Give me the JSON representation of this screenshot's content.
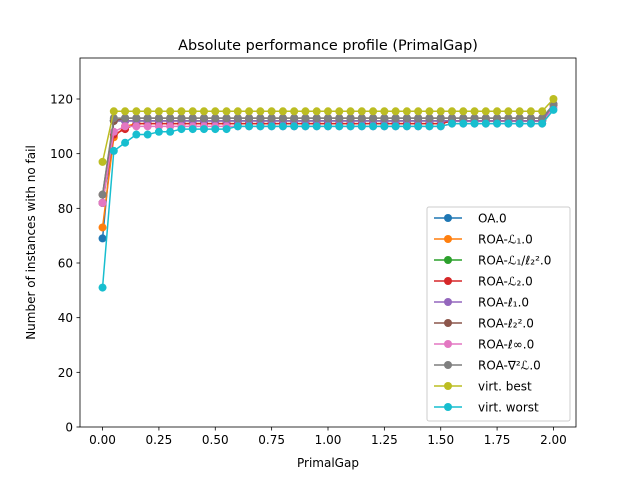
{
  "chart_data": {
    "type": "line",
    "title": "Absolute performance profile (PrimalGap)",
    "xlabel": "PrimalGap",
    "ylabel": "Number of instances with no fail",
    "xlim": [
      -0.1,
      2.1
    ],
    "ylim": [
      0,
      135
    ],
    "xticks": [
      0.0,
      0.25,
      0.5,
      0.75,
      1.0,
      1.25,
      1.5,
      1.75,
      2.0
    ],
    "xtick_labels": [
      "0.00",
      "0.25",
      "0.50",
      "0.75",
      "1.00",
      "1.25",
      "1.50",
      "1.75",
      "2.00"
    ],
    "yticks": [
      0,
      20,
      40,
      60,
      80,
      100,
      120
    ],
    "ytick_labels": [
      "0",
      "20",
      "40",
      "60",
      "80",
      "100",
      "120"
    ],
    "legend_position": "lower-right",
    "x": [
      0.0,
      0.05,
      0.1,
      0.15,
      0.2,
      0.25,
      0.3,
      0.35,
      0.4,
      0.45,
      0.5,
      0.55,
      0.6,
      0.65,
      0.7,
      0.75,
      0.8,
      0.85,
      0.9,
      0.95,
      1.0,
      1.05,
      1.1,
      1.15,
      1.2,
      1.25,
      1.3,
      1.35,
      1.4,
      1.45,
      1.5,
      1.55,
      1.6,
      1.65,
      1.7,
      1.75,
      1.8,
      1.85,
      1.9,
      1.95,
      2.0
    ],
    "series": [
      {
        "name": "OA.0",
        "color": "#1f77b4",
        "values": [
          69,
          112,
          112,
          112,
          112,
          112,
          112,
          112,
          112,
          112,
          112,
          112,
          112,
          112,
          112,
          112,
          112,
          112,
          112,
          112,
          112,
          112,
          112,
          112,
          112,
          112,
          112,
          112,
          112,
          112,
          112,
          112,
          112,
          112,
          112,
          112,
          112,
          112,
          112,
          112,
          118
        ]
      },
      {
        "name": "ROA-ℒ₁.0",
        "color": "#ff7f0e",
        "values": [
          73,
          106,
          110,
          111,
          111,
          111,
          111,
          111,
          111,
          111,
          111,
          111,
          111,
          111,
          111,
          111,
          111,
          111,
          111,
          111,
          111,
          111,
          111,
          111,
          111,
          111,
          111,
          111,
          111,
          111,
          111,
          112,
          112,
          112,
          112,
          112,
          112,
          112,
          112,
          112,
          118
        ]
      },
      {
        "name": "ROA-ℒ₁/ℓ₂².0",
        "color": "#2ca02c",
        "values": [
          82,
          112,
          112,
          112,
          112,
          112,
          112,
          112,
          112,
          112,
          112,
          112,
          112,
          112,
          112,
          112,
          112,
          112,
          112,
          112,
          112,
          112,
          112,
          112,
          112,
          112,
          112,
          112,
          112,
          112,
          112,
          112,
          112,
          112,
          112,
          112,
          112,
          112,
          112,
          112,
          118
        ]
      },
      {
        "name": "ROA-ℒ₂.0",
        "color": "#d62728",
        "values": [
          82,
          107,
          109,
          111,
          111,
          111,
          111,
          111,
          111,
          111,
          111,
          111,
          111,
          111,
          111,
          111,
          111,
          111,
          111,
          111,
          111,
          111,
          111,
          111,
          111,
          111,
          111,
          111,
          111,
          111,
          111,
          112,
          112,
          112,
          112,
          112,
          112,
          112,
          112,
          112,
          118
        ]
      },
      {
        "name": "ROA-ℓ₁.0",
        "color": "#9467bd",
        "values": [
          82,
          112,
          112,
          112,
          112,
          112,
          112,
          112,
          112,
          112,
          112,
          112,
          112,
          112,
          112,
          112,
          112,
          112,
          112,
          112,
          112,
          112,
          112,
          112,
          112,
          112,
          112,
          112,
          112,
          112,
          112,
          112,
          112,
          112,
          112,
          112,
          112,
          112,
          112,
          112,
          118
        ]
      },
      {
        "name": "ROA-ℓ₂².0",
        "color": "#8c564b",
        "values": [
          85,
          112,
          113,
          113,
          113,
          113,
          113,
          113,
          113,
          113,
          113,
          113,
          113,
          113,
          113,
          113,
          113,
          113,
          113,
          113,
          113,
          113,
          113,
          113,
          113,
          113,
          113,
          113,
          113,
          113,
          113,
          113,
          113,
          113,
          113,
          113,
          113,
          113,
          113,
          113,
          118
        ]
      },
      {
        "name": "ROA-ℓ∞.0",
        "color": "#e377c2",
        "values": [
          82,
          108,
          110,
          110,
          110,
          110,
          110,
          110,
          110,
          110,
          110,
          110,
          110,
          110,
          110,
          110,
          110,
          110,
          110,
          110,
          110,
          110,
          110,
          110,
          110,
          110,
          110,
          110,
          110,
          110,
          110,
          111,
          111,
          111,
          111,
          111,
          111,
          111,
          111,
          111,
          117
        ]
      },
      {
        "name": "ROA-∇²ℒ.0",
        "color": "#7f7f7f",
        "values": [
          85,
          113,
          113,
          113,
          113,
          113,
          113,
          113,
          113,
          113,
          113,
          113,
          113,
          113,
          113,
          113,
          113,
          113,
          113,
          113,
          113,
          113,
          113,
          113,
          113,
          113,
          113,
          113,
          113,
          113,
          113,
          113,
          113,
          113,
          113,
          113,
          113,
          113,
          113,
          113,
          118
        ]
      },
      {
        "name": "virt. best",
        "color": "#bcbd22",
        "values": [
          97,
          115.5,
          115.5,
          115.5,
          115.5,
          115.5,
          115.5,
          115.5,
          115.5,
          115.5,
          115.5,
          115.5,
          115.5,
          115.5,
          115.5,
          115.5,
          115.5,
          115.5,
          115.5,
          115.5,
          115.5,
          115.5,
          115.5,
          115.5,
          115.5,
          115.5,
          115.5,
          115.5,
          115.5,
          115.5,
          115.5,
          115.5,
          115.5,
          115.5,
          115.5,
          115.5,
          115.5,
          115.5,
          115.5,
          115.5,
          120
        ]
      },
      {
        "name": "virt. worst",
        "color": "#17becf",
        "values": [
          51,
          101,
          104,
          107,
          107,
          108,
          108,
          109,
          109,
          109,
          109,
          109,
          110,
          110,
          110,
          110,
          110,
          110,
          110,
          110,
          110,
          110,
          110,
          110,
          110,
          110,
          110,
          110,
          110,
          110,
          110,
          111,
          111,
          111,
          111,
          111,
          111,
          111,
          111,
          111,
          116
        ]
      }
    ]
  }
}
